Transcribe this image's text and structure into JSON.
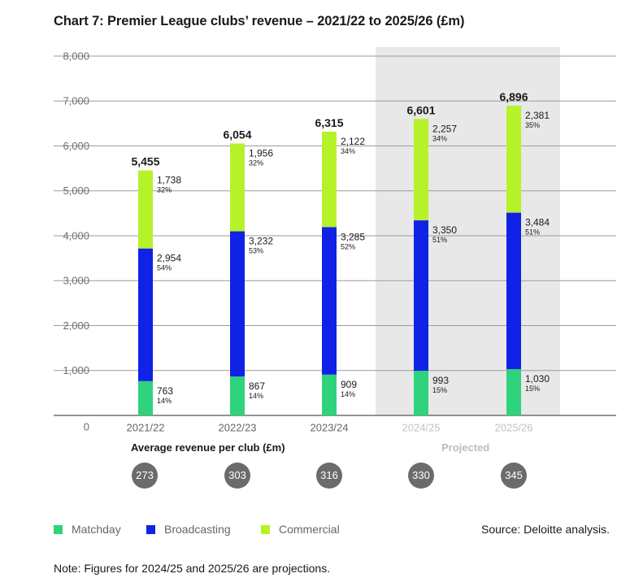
{
  "title": "Chart 7: Premier League clubs’ revenue – 2021/22 to 2025/26 (£m)",
  "avg_label": "Average revenue per club (£m)",
  "projected_label": "Projected",
  "source": "Source: Deloitte analysis.",
  "note": "Note: Figures for 2024/25 and 2025/26 are projections.",
  "colors": {
    "matchday": "#2ed37c",
    "broadcasting": "#0f22e6",
    "commercial": "#b6f229",
    "projected_band": "#e8e8e8",
    "grid": "#9b9b9b",
    "badge": "#6b6b6b"
  },
  "legend": [
    {
      "label": "Matchday",
      "color": "#2ed37c"
    },
    {
      "label": "Broadcasting",
      "color": "#0f22e6"
    },
    {
      "label": "Commercial",
      "color": "#b6f229"
    }
  ],
  "chart_data": {
    "type": "bar",
    "stacked": true,
    "title": "Chart 7: Premier League clubs’ revenue – 2021/22 to 2025/26 (£m)",
    "categories": [
      "2021/22",
      "2022/23",
      "2023/24",
      "2024/25",
      "2025/26"
    ],
    "projected": [
      false,
      false,
      false,
      true,
      true
    ],
    "ylim": [
      0,
      8000
    ],
    "yticks": [
      "0",
      "1,000",
      "2,000",
      "3,000",
      "4,000",
      "5,000",
      "6,000",
      "7,000",
      "8,000"
    ],
    "ytick_values": [
      0,
      1000,
      2000,
      3000,
      4000,
      5000,
      6000,
      7000,
      8000
    ],
    "series": [
      {
        "name": "Matchday",
        "values": [
          763,
          867,
          909,
          993,
          1030
        ],
        "labels": [
          "763",
          "867",
          "909",
          "993",
          "1,030"
        ],
        "pct": [
          "14%",
          "14%",
          "14%",
          "15%",
          "15%"
        ]
      },
      {
        "name": "Broadcasting",
        "values": [
          2954,
          3232,
          3285,
          3350,
          3484
        ],
        "labels": [
          "2,954",
          "3,232",
          "3,285",
          "3,350",
          "3,484"
        ],
        "pct": [
          "54%",
          "53%",
          "52%",
          "51%",
          "51%"
        ]
      },
      {
        "name": "Commercial",
        "values": [
          1738,
          1956,
          2122,
          2257,
          2381
        ],
        "labels": [
          "1,738",
          "1,956",
          "2,122",
          "2,257",
          "2,381"
        ],
        "pct": [
          "32%",
          "32%",
          "34%",
          "34%",
          "35%"
        ]
      }
    ],
    "totals": [
      5455,
      6054,
      6315,
      6601,
      6896
    ],
    "total_labels": [
      "5,455",
      "6,054",
      "6,315",
      "6,601",
      "6,896"
    ],
    "avg_per_club": [
      "273",
      "303",
      "316",
      "330",
      "345"
    ],
    "legend_position": "bottom-left"
  }
}
